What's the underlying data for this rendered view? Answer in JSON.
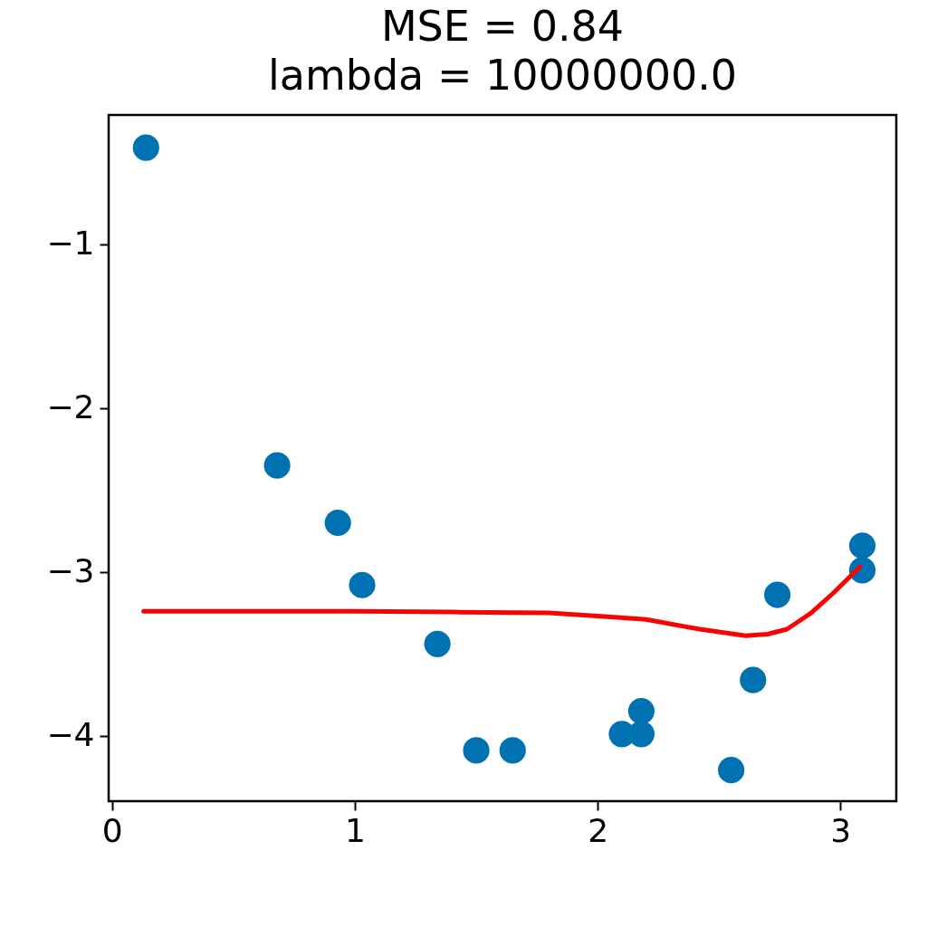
{
  "chart_data": {
    "type": "scatter",
    "title": [
      "MSE = 0.84",
      "lambda = 10000000.0"
    ],
    "xlim": [
      -0.014,
      3.23
    ],
    "ylim": [
      -4.4,
      -0.21
    ],
    "xticks": [
      0,
      1,
      2,
      3
    ],
    "yticks": [
      -4,
      -3,
      -2,
      -1
    ],
    "grid": false,
    "series": [
      {
        "marker": "circle",
        "color": "#0072b2",
        "x": [
          0.14,
          0.68,
          0.93,
          1.03,
          1.34,
          1.5,
          1.65,
          2.1,
          2.18,
          2.18,
          2.55,
          2.64,
          2.74,
          3.09,
          3.09
        ],
        "values": [
          -0.41,
          -2.35,
          -2.7,
          -3.08,
          -3.44,
          -4.09,
          -4.09,
          -3.99,
          -3.99,
          -3.85,
          -4.21,
          -3.66,
          -3.14,
          -2.99,
          -2.84
        ]
      },
      {
        "type": "line",
        "marker": "none",
        "line_style": "solid",
        "color": "#ff0000",
        "x": [
          0.13,
          0.6,
          1.0,
          1.4,
          1.8,
          2.0,
          2.2,
          2.42,
          2.61,
          2.7,
          2.78,
          2.88,
          2.97,
          3.08
        ],
        "values": [
          -3.24,
          -3.24,
          -3.24,
          -3.245,
          -3.25,
          -3.27,
          -3.29,
          -3.35,
          -3.39,
          -3.38,
          -3.35,
          -3.25,
          -3.13,
          -2.97
        ]
      }
    ]
  }
}
